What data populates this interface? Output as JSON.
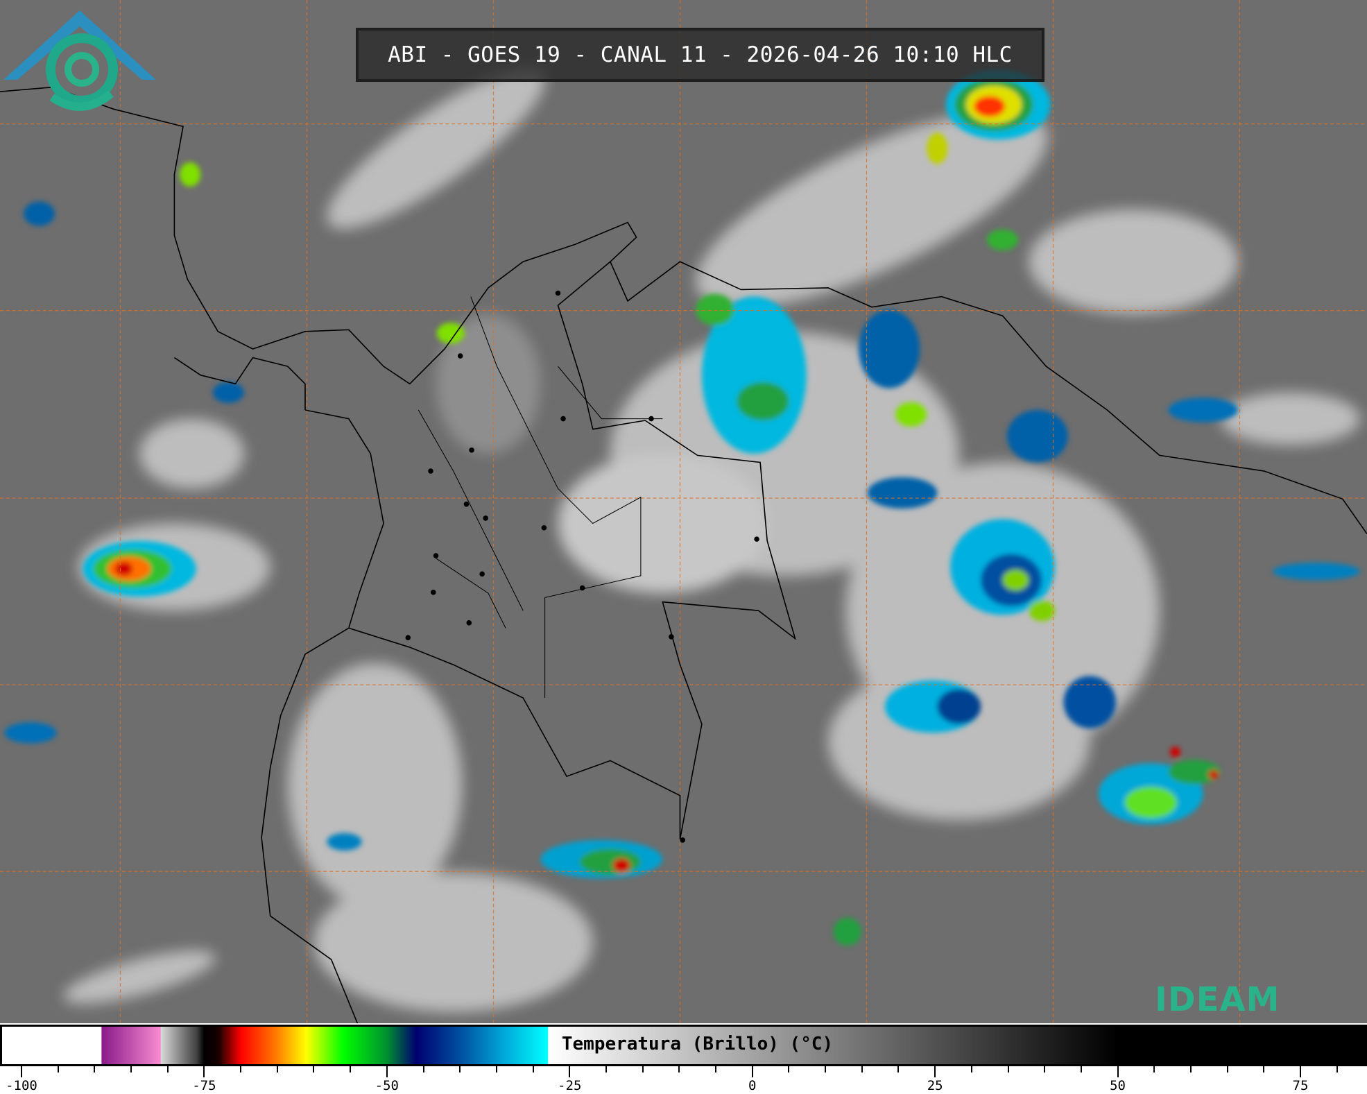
{
  "title": "ABI - GOES 19 - CANAL 11 - 2026-04-26 10:10 HLC",
  "logo": {
    "text": "IDEAM",
    "colors": {
      "roof": "#2b8fbf",
      "text": "#2ab38a"
    }
  },
  "colorbar": {
    "label": "Temperatura (Brillo) (°C)",
    "range": [
      -100,
      83
    ],
    "ticks": [
      {
        "value": -100,
        "label": "-100"
      },
      {
        "value": -75,
        "label": "-75"
      },
      {
        "value": -50,
        "label": "-50"
      },
      {
        "value": -25,
        "label": "-25"
      },
      {
        "value": 0,
        "label": "0"
      },
      {
        "value": 25,
        "label": "25"
      },
      {
        "value": 50,
        "label": "50"
      },
      {
        "value": 75,
        "label": "75"
      }
    ],
    "minor_tick_step": 5,
    "stops": [
      {
        "value": -100,
        "color": "#ffffff"
      },
      {
        "value": -89.1,
        "color": "#ffffff"
      },
      {
        "value": -89,
        "color": "#8b1a8b"
      },
      {
        "value": -81,
        "color": "#f78bd0"
      },
      {
        "value": -80.9,
        "color": "#d8d8d8"
      },
      {
        "value": -76,
        "color": "#404040"
      },
      {
        "value": -75,
        "color": "#000000"
      },
      {
        "value": -73,
        "color": "#1a0000"
      },
      {
        "value": -70,
        "color": "#ff0000"
      },
      {
        "value": -65,
        "color": "#ff7f00"
      },
      {
        "value": -61,
        "color": "#ffff00"
      },
      {
        "value": -56,
        "color": "#00ff00"
      },
      {
        "value": -50,
        "color": "#009030"
      },
      {
        "value": -46,
        "color": "#000070"
      },
      {
        "value": -40,
        "color": "#004fa0"
      },
      {
        "value": -34,
        "color": "#00a8d8"
      },
      {
        "value": -28,
        "color": "#00ffff"
      },
      {
        "value": -27.9,
        "color": "#ffffff"
      },
      {
        "value": 50,
        "color": "#000000"
      },
      {
        "value": 83,
        "color": "#000000"
      }
    ]
  },
  "gridline_color": "#e07020"
}
